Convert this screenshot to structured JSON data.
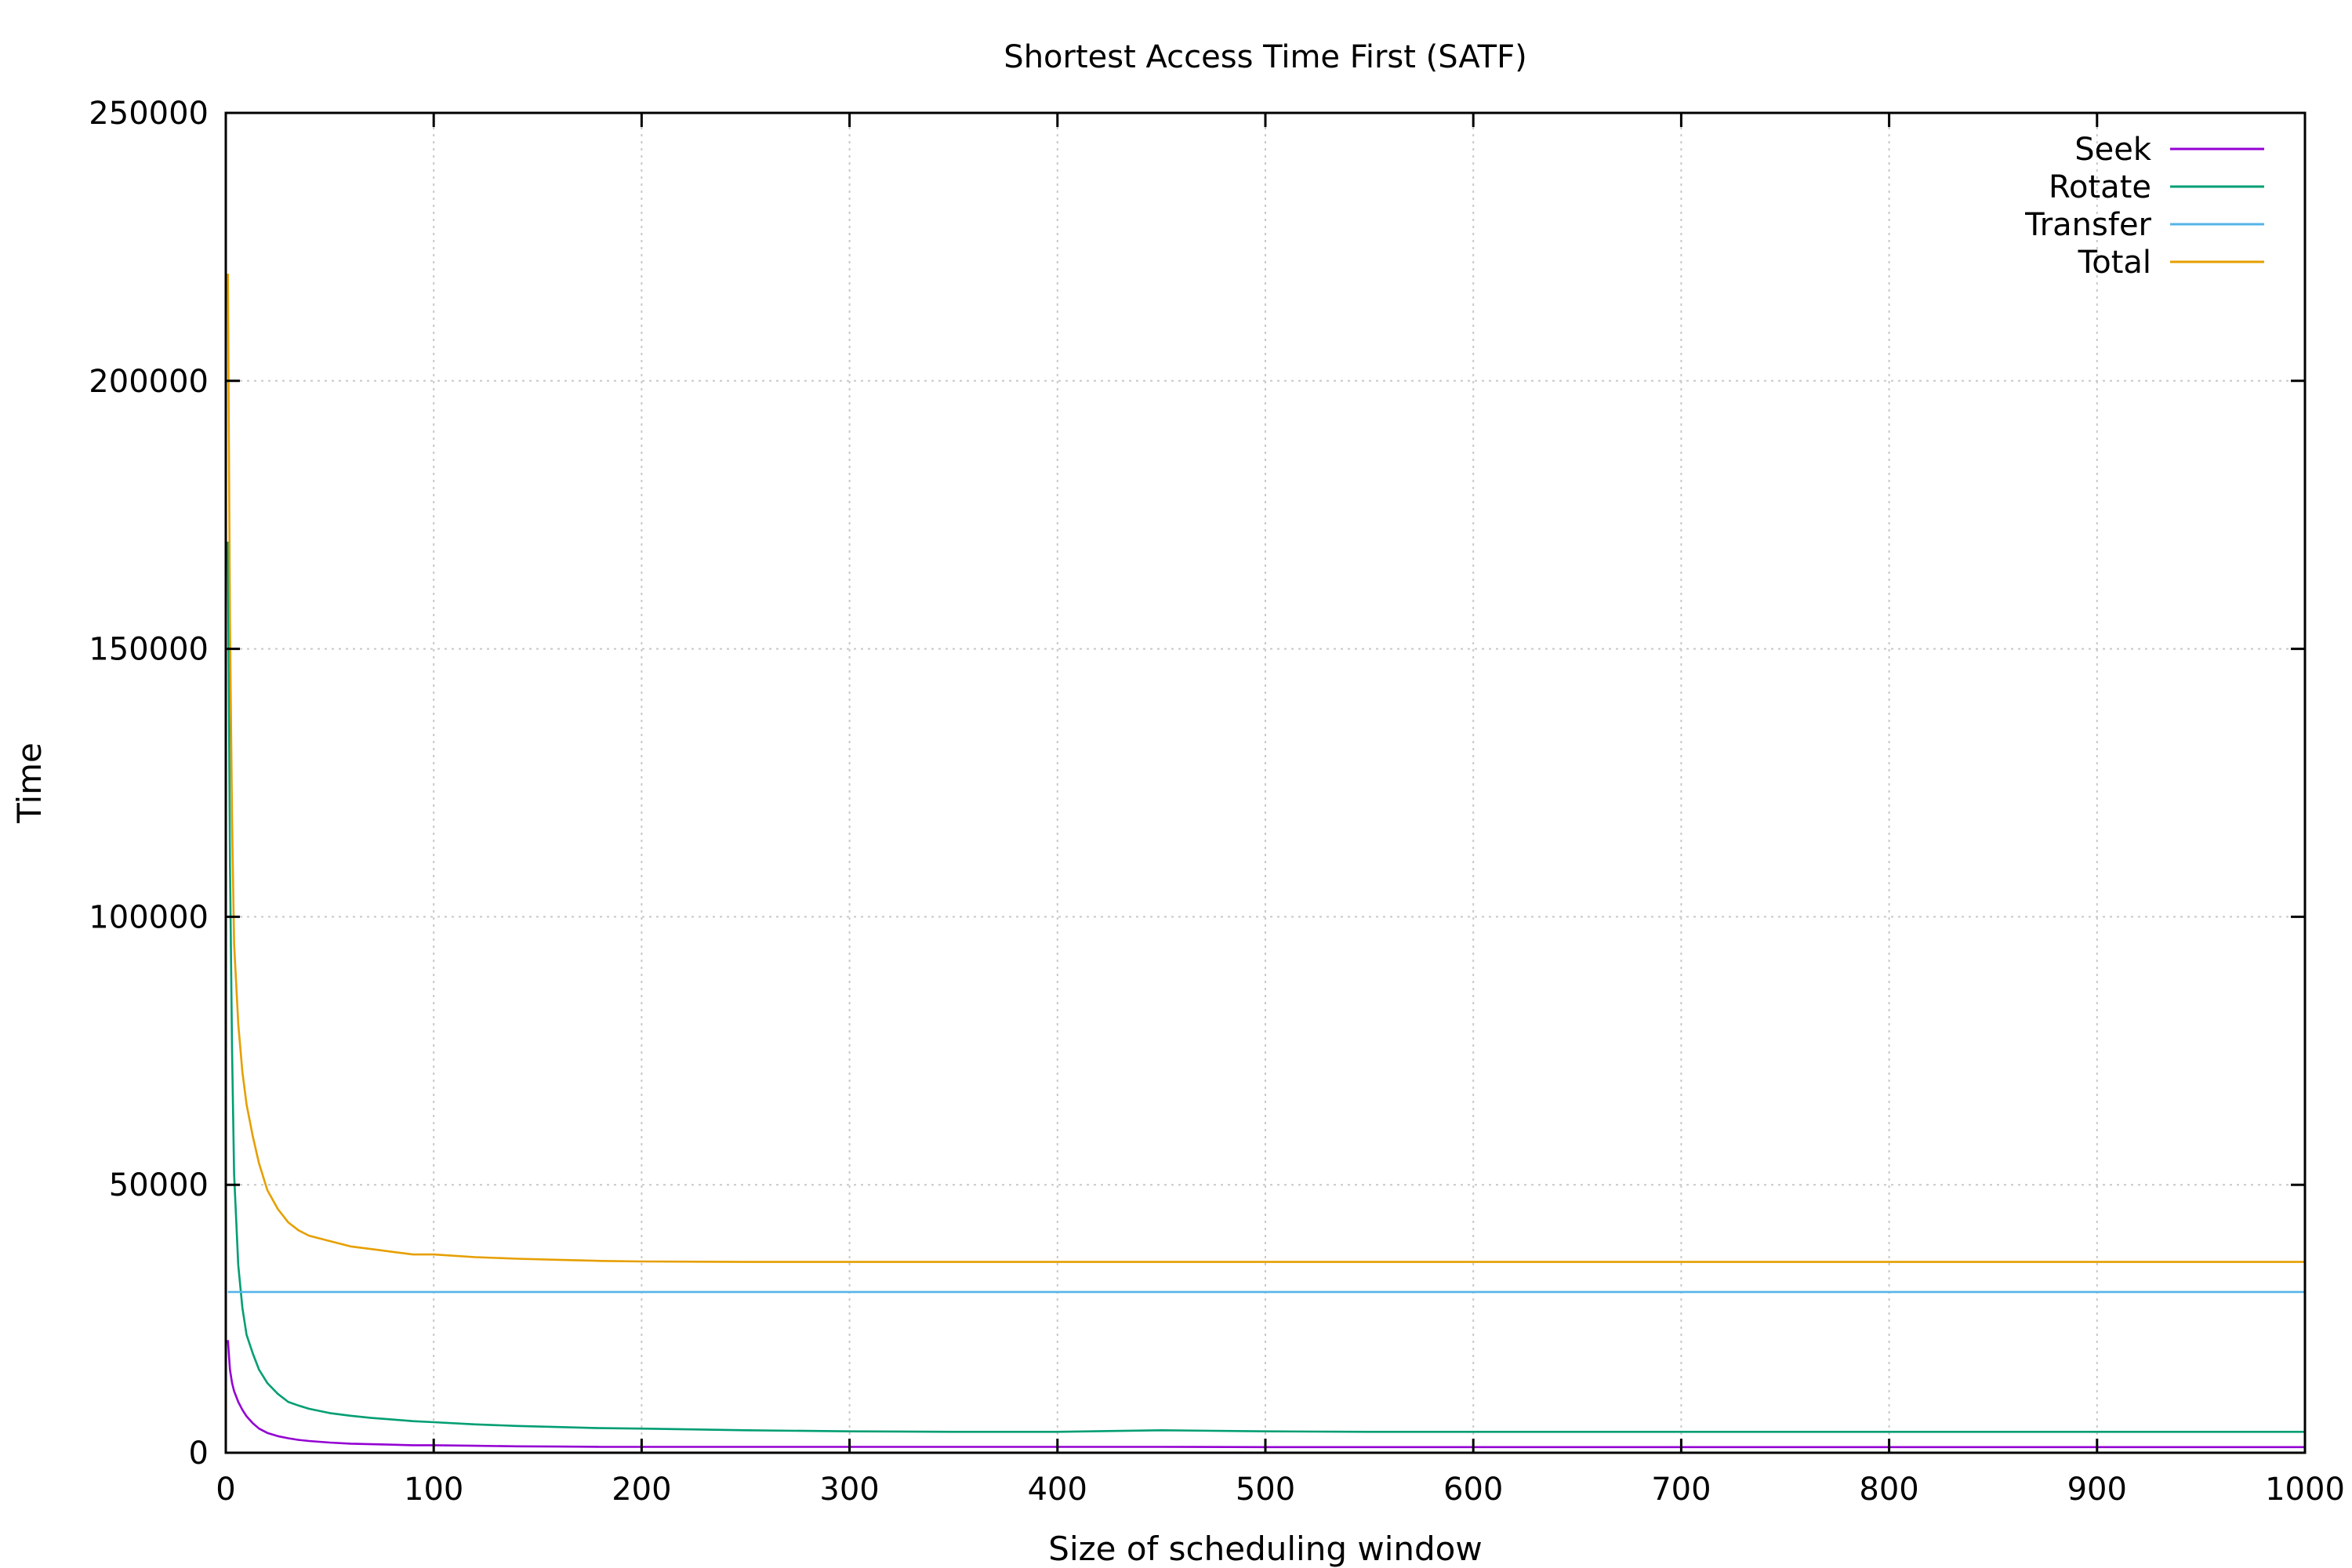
{
  "chart_data": {
    "type": "line",
    "title": "Shortest Access Time First (SATF)",
    "xlabel": "Size of scheduling window",
    "ylabel": "Time",
    "xlim": [
      0,
      1000
    ],
    "ylim": [
      0,
      250000
    ],
    "xticks": [
      0,
      100,
      200,
      300,
      400,
      500,
      600,
      700,
      800,
      900,
      1000
    ],
    "yticks": [
      0,
      50000,
      100000,
      150000,
      200000,
      250000
    ],
    "grid": true,
    "legend_position": "top-right",
    "series": [
      {
        "name": "Seek",
        "color": "#9400d3",
        "x": [
          1,
          2,
          3,
          4,
          6,
          8,
          10,
          13,
          16,
          20,
          25,
          30,
          35,
          40,
          50,
          60,
          70,
          80,
          90,
          100,
          120,
          140,
          160,
          180,
          200,
          250,
          300,
          350,
          400,
          450,
          500,
          550,
          600,
          700,
          800,
          900,
          1000
        ],
        "values": [
          21000,
          15500,
          13000,
          11500,
          9500,
          8000,
          6800,
          5500,
          4500,
          3700,
          3100,
          2700,
          2400,
          2200,
          1900,
          1700,
          1600,
          1500,
          1400,
          1400,
          1300,
          1200,
          1150,
          1100,
          1100,
          1100,
          1100,
          1100,
          1100,
          1100,
          1050,
          1050,
          1050,
          1050,
          1050,
          1050,
          1050
        ]
      },
      {
        "name": "Rotate",
        "color": "#009e73",
        "x": [
          1,
          2,
          3,
          4,
          6,
          8,
          10,
          13,
          16,
          20,
          25,
          30,
          35,
          40,
          50,
          60,
          70,
          80,
          90,
          100,
          120,
          140,
          160,
          180,
          200,
          250,
          300,
          350,
          400,
          450,
          500,
          550,
          600,
          700,
          800,
          900,
          1000
        ],
        "values": [
          170000,
          110000,
          75000,
          52000,
          35000,
          27000,
          22000,
          18500,
          15500,
          13000,
          11000,
          9500,
          8800,
          8200,
          7400,
          6900,
          6500,
          6200,
          5900,
          5700,
          5300,
          5000,
          4800,
          4600,
          4500,
          4200,
          4000,
          3900,
          3900,
          4200,
          4000,
          3900,
          3900,
          3900,
          3900,
          3900,
          3900
        ]
      },
      {
        "name": "Transfer",
        "color": "#56b4e9",
        "x": [
          1,
          1000
        ],
        "values": [
          30000,
          30000
        ]
      },
      {
        "name": "Total",
        "color": "#e69f00",
        "x": [
          1,
          2,
          3,
          4,
          6,
          8,
          10,
          13,
          16,
          20,
          25,
          30,
          35,
          40,
          50,
          60,
          70,
          80,
          90,
          100,
          120,
          140,
          160,
          180,
          200,
          250,
          300,
          350,
          400,
          450,
          500,
          550,
          600,
          700,
          800,
          900,
          1000
        ],
        "values": [
          220000,
          155000,
          118000,
          95000,
          80000,
          71000,
          65000,
          59000,
          54000,
          49000,
          45500,
          43000,
          41500,
          40500,
          39500,
          38500,
          38000,
          37500,
          37000,
          37000,
          36500,
          36200,
          36000,
          35800,
          35700,
          35600,
          35600,
          35600,
          35600,
          35600,
          35600,
          35600,
          35600,
          35600,
          35600,
          35600,
          35600
        ]
      }
    ]
  }
}
